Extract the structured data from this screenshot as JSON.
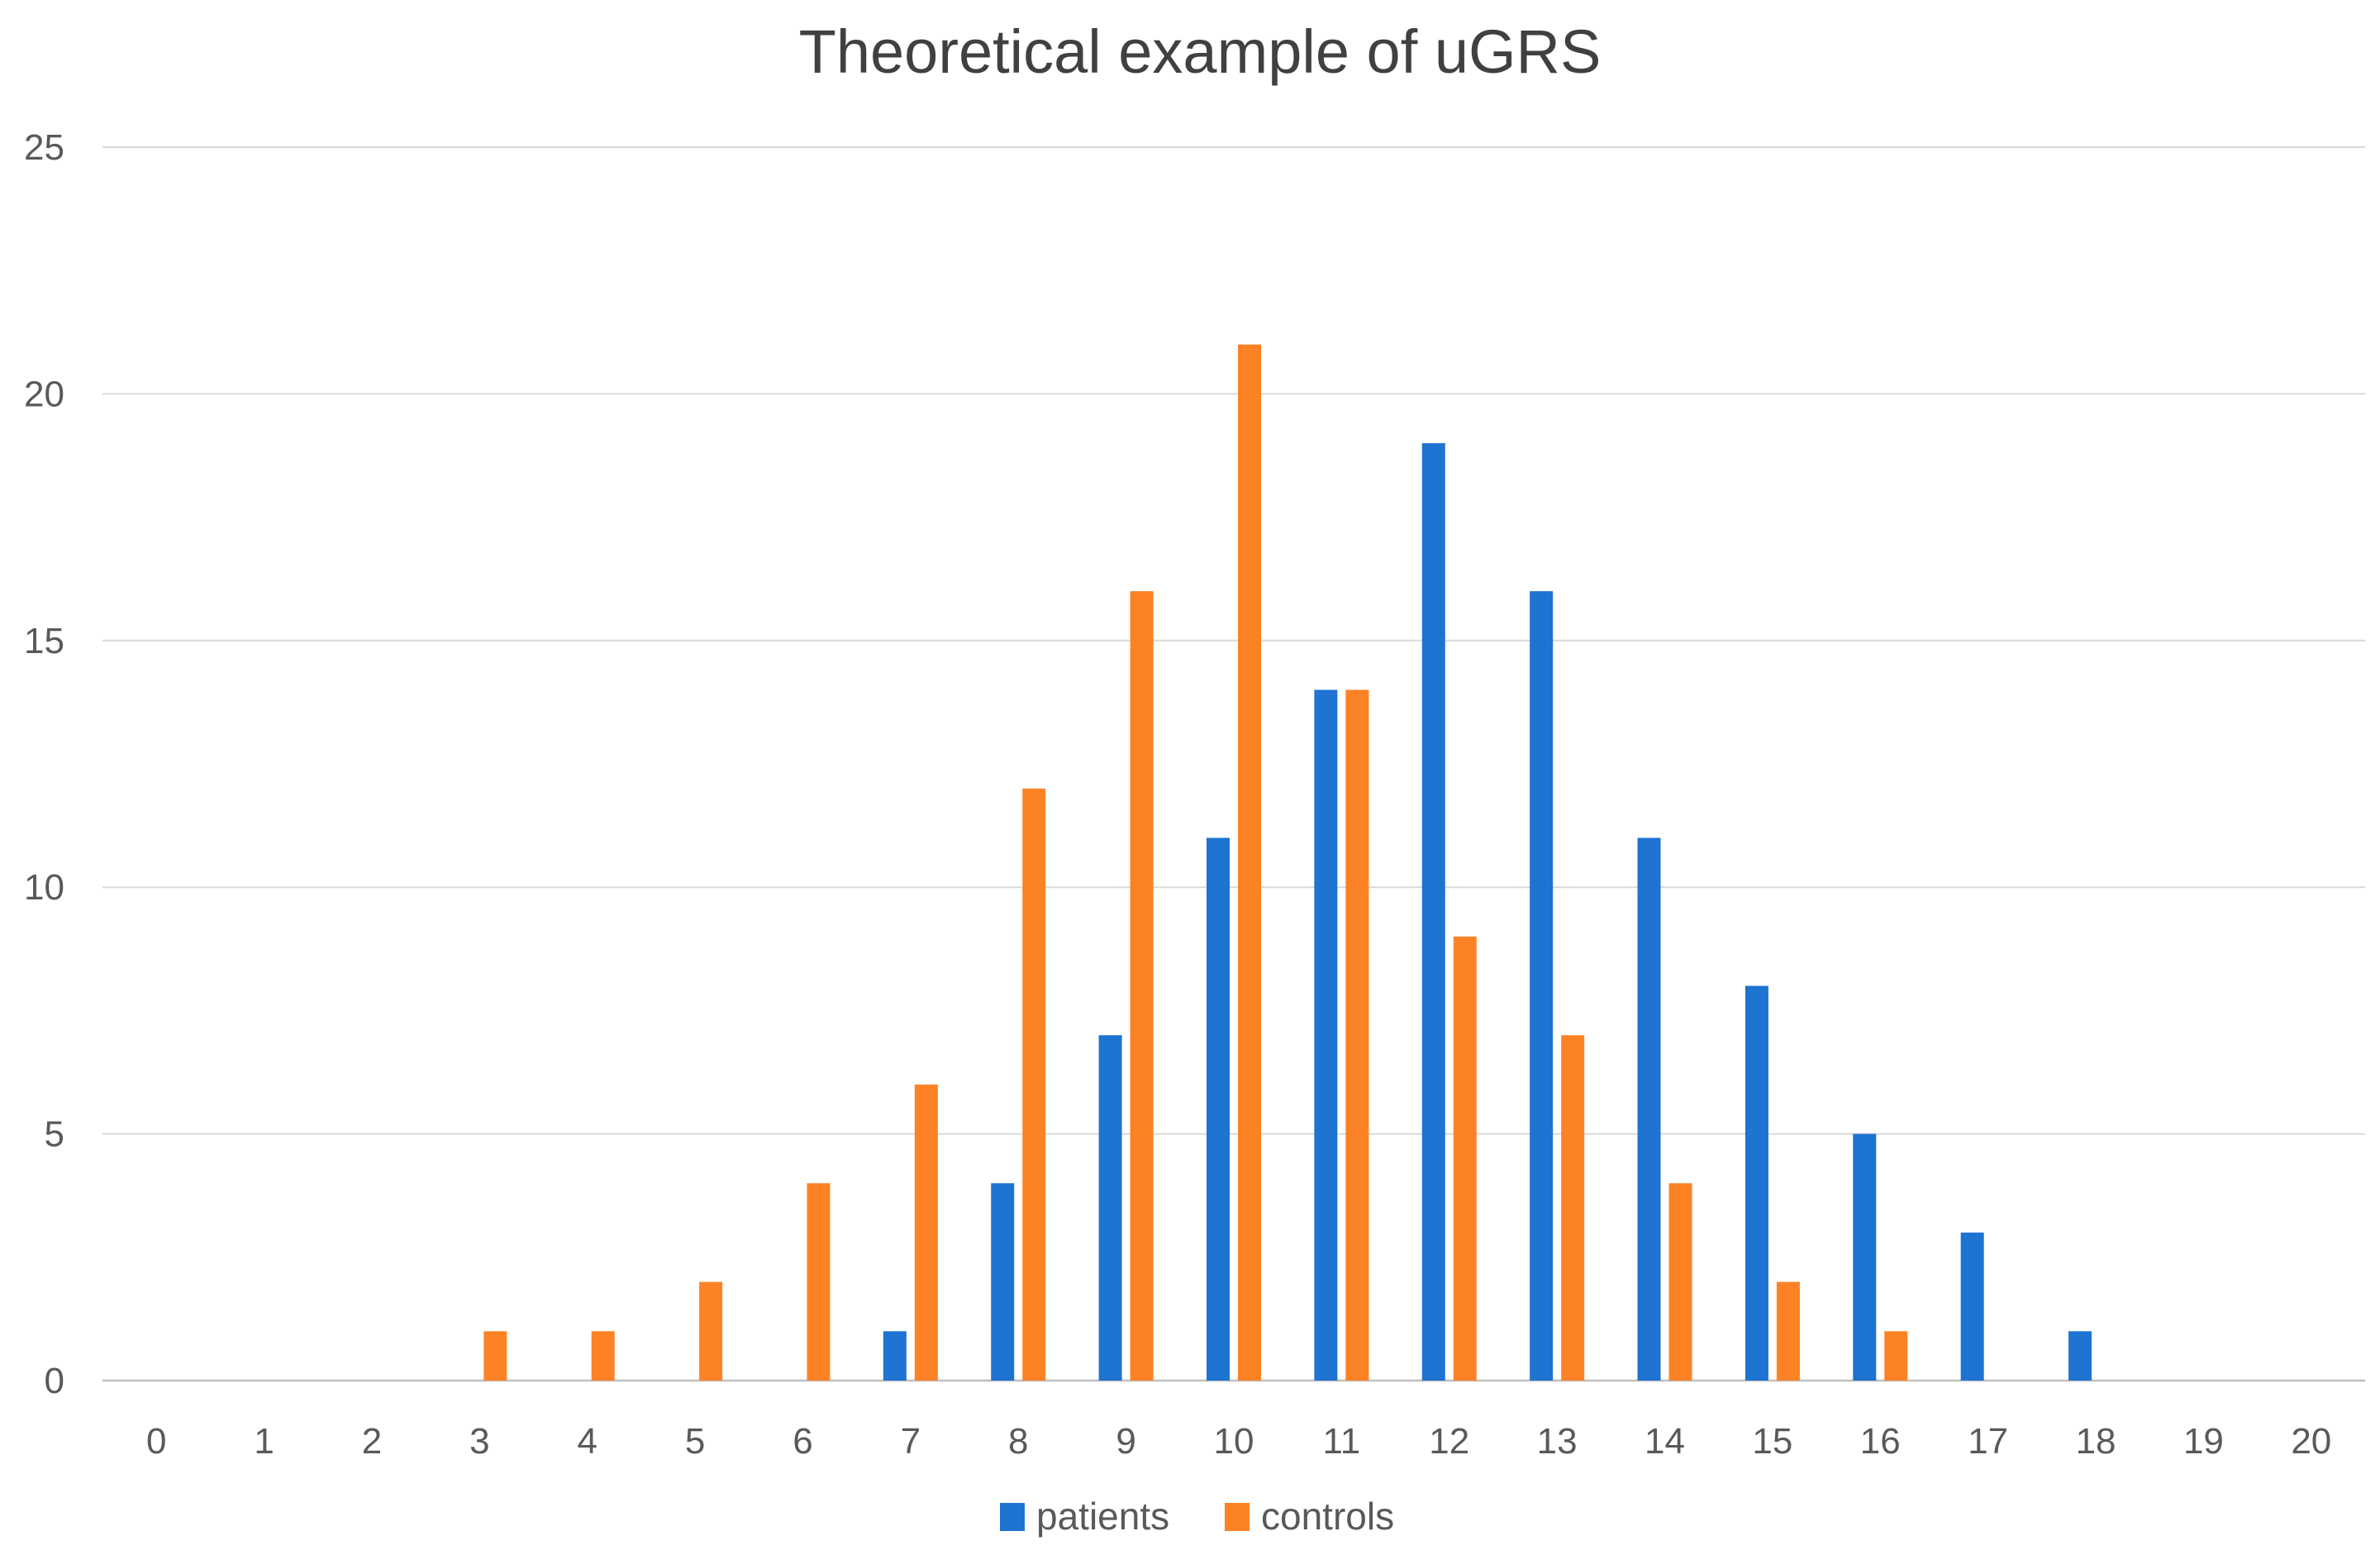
{
  "chart_data": {
    "type": "bar",
    "title": "Theoretical example of uGRS",
    "xlabel": "",
    "ylabel": "",
    "categories": [
      "0",
      "1",
      "2",
      "3",
      "4",
      "5",
      "6",
      "7",
      "8",
      "9",
      "10",
      "11",
      "12",
      "13",
      "14",
      "15",
      "16",
      "17",
      "18",
      "19",
      "20"
    ],
    "series": [
      {
        "name": "patients",
        "color": "#1f73d1",
        "values": [
          0,
          0,
          0,
          0,
          0,
          0,
          0,
          1,
          4,
          7,
          11,
          14,
          19,
          16,
          11,
          8,
          5,
          3,
          1,
          0,
          0
        ]
      },
      {
        "name": "controls",
        "color": "#fd8226",
        "values": [
          0,
          0,
          0,
          1,
          1,
          2,
          4,
          6,
          12,
          16,
          21,
          14,
          9,
          7,
          4,
          2,
          1,
          0,
          0,
          0,
          0
        ]
      }
    ],
    "ylim": [
      0,
      25
    ],
    "yticks": [
      0,
      5,
      10,
      15,
      20,
      25
    ],
    "grid": true,
    "legend_position": "bottom"
  },
  "colors": {
    "gridline": "#d9d9d9",
    "axis": "#bfbfbf",
    "text": "#595959",
    "title": "#404040"
  }
}
